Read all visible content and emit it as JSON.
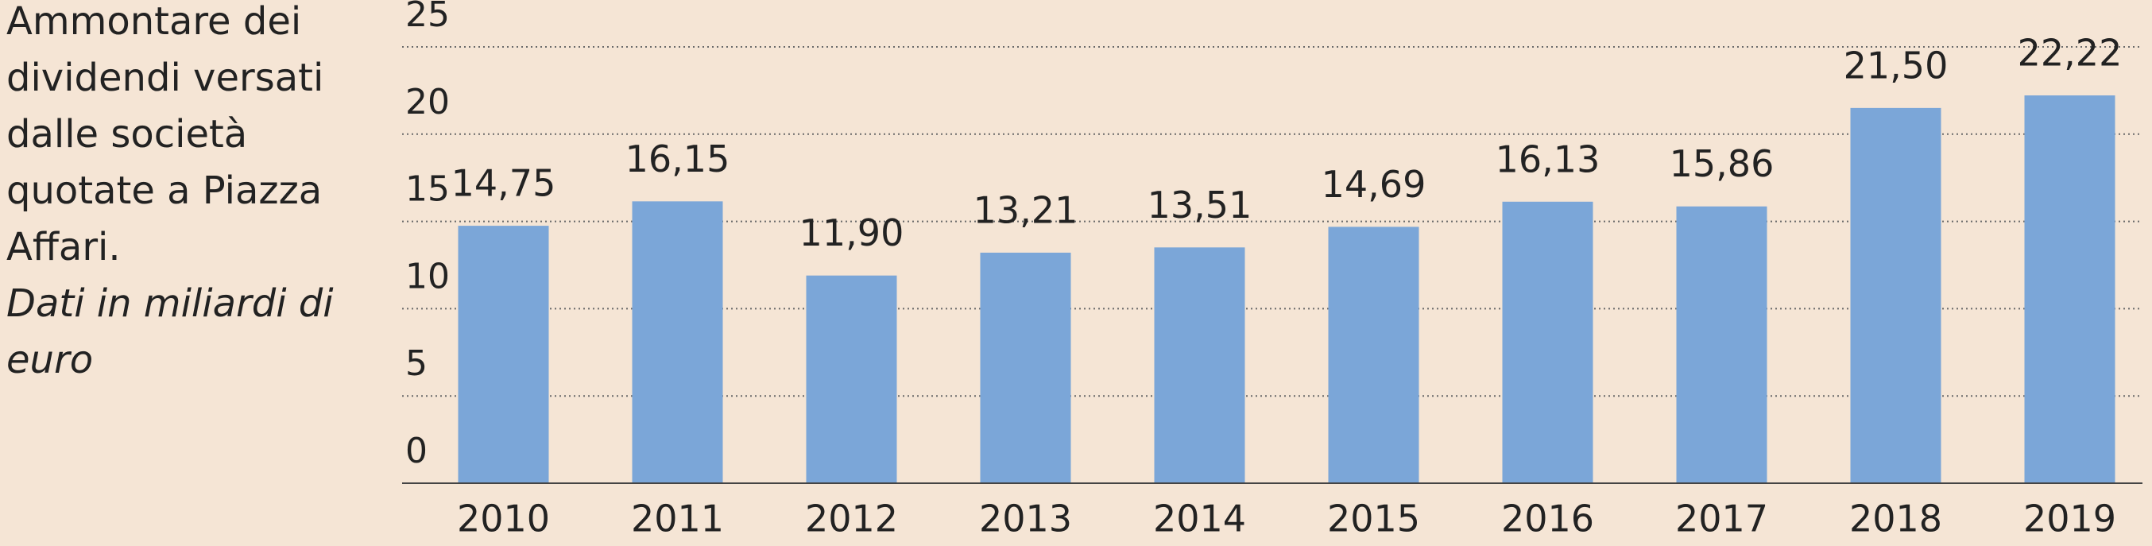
{
  "chart_data": {
    "type": "bar",
    "title": "Ammontare dei dividendi versati dalle società quotate a Piazza Affari.",
    "subtitle": "Dati in miliardi di euro",
    "categories": [
      "2010",
      "2011",
      "2012",
      "2013",
      "2014",
      "2015",
      "2016",
      "2017",
      "2018",
      "2019"
    ],
    "values": [
      14.75,
      16.15,
      11.9,
      13.21,
      13.51,
      14.69,
      16.13,
      15.86,
      21.5,
      22.22
    ],
    "value_labels": [
      "14,75",
      "16,15",
      "11,90",
      "13,21",
      "13,51",
      "14,69",
      "16,13",
      "15,86",
      "21,50",
      "22,22"
    ],
    "color": "#7ba6d8",
    "ylim": [
      0,
      25
    ],
    "yticks": [
      0,
      5,
      10,
      15,
      20,
      25
    ],
    "grid": true
  }
}
